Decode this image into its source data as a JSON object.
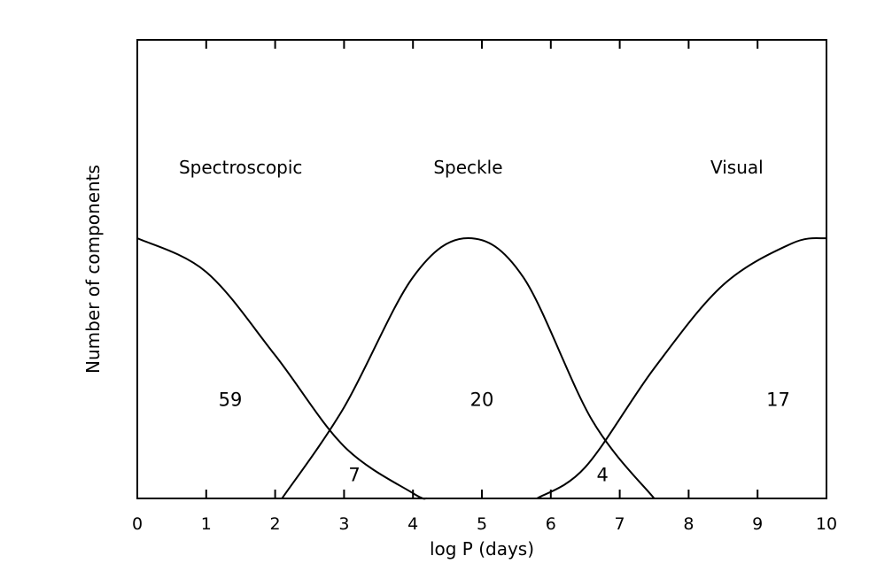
{
  "chart_data": {
    "type": "line",
    "xlabel": "log P (days)",
    "ylabel": "Number of components",
    "xlim": [
      0,
      10
    ],
    "x_ticks": [
      "0",
      "1",
      "2",
      "3",
      "4",
      "5",
      "6",
      "7",
      "8",
      "9",
      "10"
    ],
    "y_ticks": [],
    "grid": false,
    "series": [
      {
        "name": "Spectroscopic",
        "x": [
          0,
          1,
          2,
          3,
          4,
          4.2
        ],
        "y": [
          1.0,
          0.87,
          0.55,
          0.2,
          0.02,
          0
        ]
      },
      {
        "name": "Speckle",
        "x": [
          2.1,
          3,
          4,
          4.8,
          5.6,
          6.6,
          7.5
        ],
        "y": [
          0,
          0.35,
          0.85,
          1.0,
          0.85,
          0.3,
          0
        ]
      },
      {
        "name": "Visual",
        "x": [
          5.8,
          6.5,
          7.5,
          8.5,
          9.5,
          10
        ],
        "y": [
          0,
          0.12,
          0.5,
          0.82,
          0.98,
          1.0
        ]
      }
    ],
    "region_labels": [
      {
        "text": "Spectroscopic",
        "x": 1.5
      },
      {
        "text": "Speckle",
        "x": 4.8
      },
      {
        "text": "Visual",
        "x": 8.7
      }
    ],
    "count_labels": [
      {
        "text": "59",
        "x": 1.35,
        "y": 0.38
      },
      {
        "text": "20",
        "x": 5.0,
        "y": 0.38
      },
      {
        "text": "17",
        "x": 9.3,
        "y": 0.38
      },
      {
        "text": "7",
        "x": 3.15,
        "y": 0.09
      },
      {
        "text": "4",
        "x": 6.75,
        "y": 0.09
      }
    ]
  }
}
